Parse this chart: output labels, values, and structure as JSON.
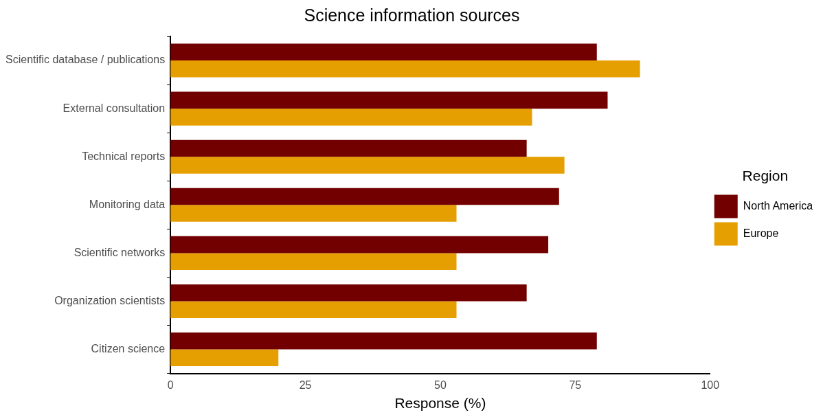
{
  "chart_data": {
    "type": "bar",
    "orientation": "horizontal",
    "title": "Science information sources",
    "xlabel": "Response (%)",
    "legend_title": "Region",
    "legend": "right",
    "categories": [
      "Scientific database / publications",
      "External consultation",
      "Technical reports",
      "Monitoring data",
      "Scientific networks",
      "Organization scientists",
      "Citizen science"
    ],
    "series": [
      {
        "name": "North America",
        "color": "#730000",
        "values": [
          79,
          81,
          66,
          72,
          70,
          66,
          79
        ]
      },
      {
        "name": "Europe",
        "color": "#e69f00",
        "values": [
          87,
          67,
          73,
          53,
          53,
          53,
          20
        ]
      }
    ],
    "xlim": [
      0,
      100
    ],
    "xticks": [
      0,
      25,
      50,
      75,
      100
    ],
    "grid": false
  }
}
